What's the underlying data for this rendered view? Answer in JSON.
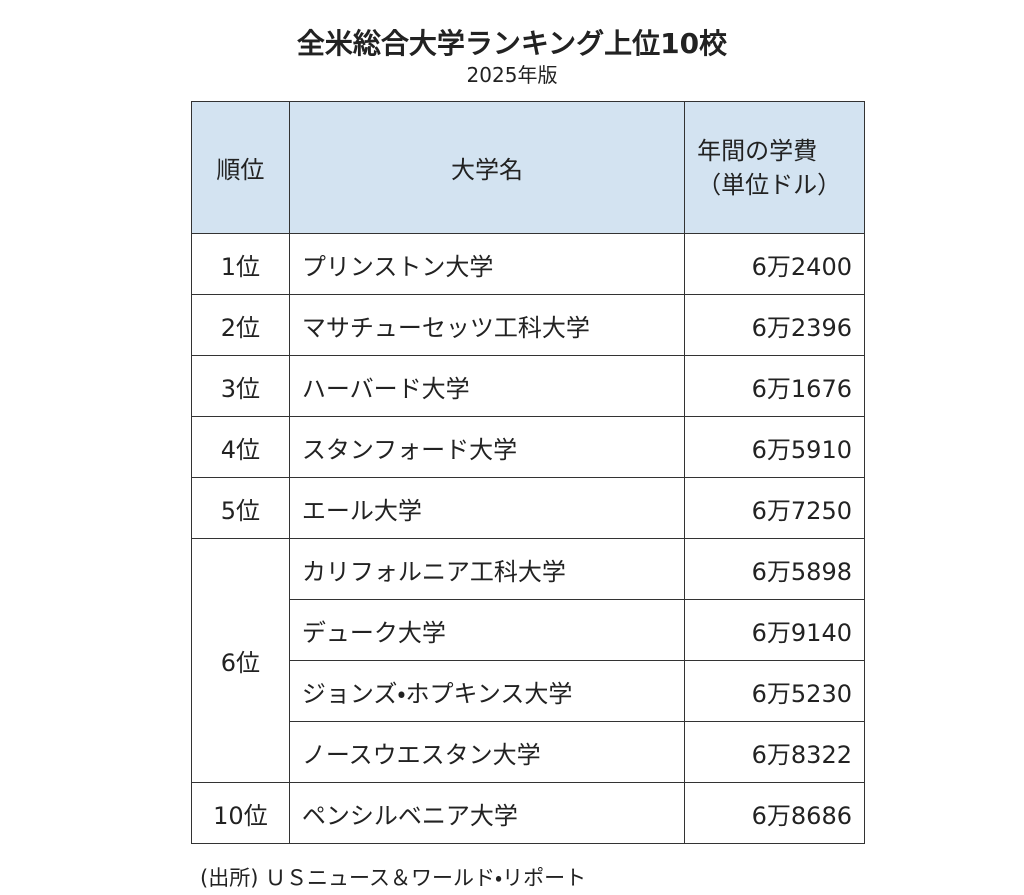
{
  "header": {
    "title": "全米総合大学ランキング上位10校",
    "subtitle": "2025年版"
  },
  "table": {
    "columns": [
      "順位",
      "大学名",
      "年間の学費（単位ドル）"
    ],
    "groups": [
      {
        "rank": "1位",
        "universities": [
          {
            "name": "プリンストン大学",
            "fee": "6万2400"
          }
        ]
      },
      {
        "rank": "2位",
        "universities": [
          {
            "name": "マサチューセッツ工科大学",
            "fee": "6万2396"
          }
        ]
      },
      {
        "rank": "3位",
        "universities": [
          {
            "name": "ハーバード大学",
            "fee": "6万1676"
          }
        ]
      },
      {
        "rank": "4位",
        "universities": [
          {
            "name": "スタンフォード大学",
            "fee": "6万5910"
          }
        ]
      },
      {
        "rank": "5位",
        "universities": [
          {
            "name": "エール大学",
            "fee": "6万7250"
          }
        ]
      },
      {
        "rank": "6位",
        "universities": [
          {
            "name": "カリフォルニア工科大学",
            "fee": "6万5898"
          },
          {
            "name": "デューク大学",
            "fee": "6万9140"
          },
          {
            "name": "ジョンズ・ホプキンス大学",
            "fee": "6万5230"
          },
          {
            "name": "ノースウエスタン大学",
            "fee": "6万8322"
          }
        ]
      },
      {
        "rank": "10位",
        "universities": [
          {
            "name": "ペンシルベニア大学",
            "fee": "6万8686"
          }
        ]
      }
    ]
  },
  "source": "(出所) ＵＳニュース＆ワールド・リポート"
}
